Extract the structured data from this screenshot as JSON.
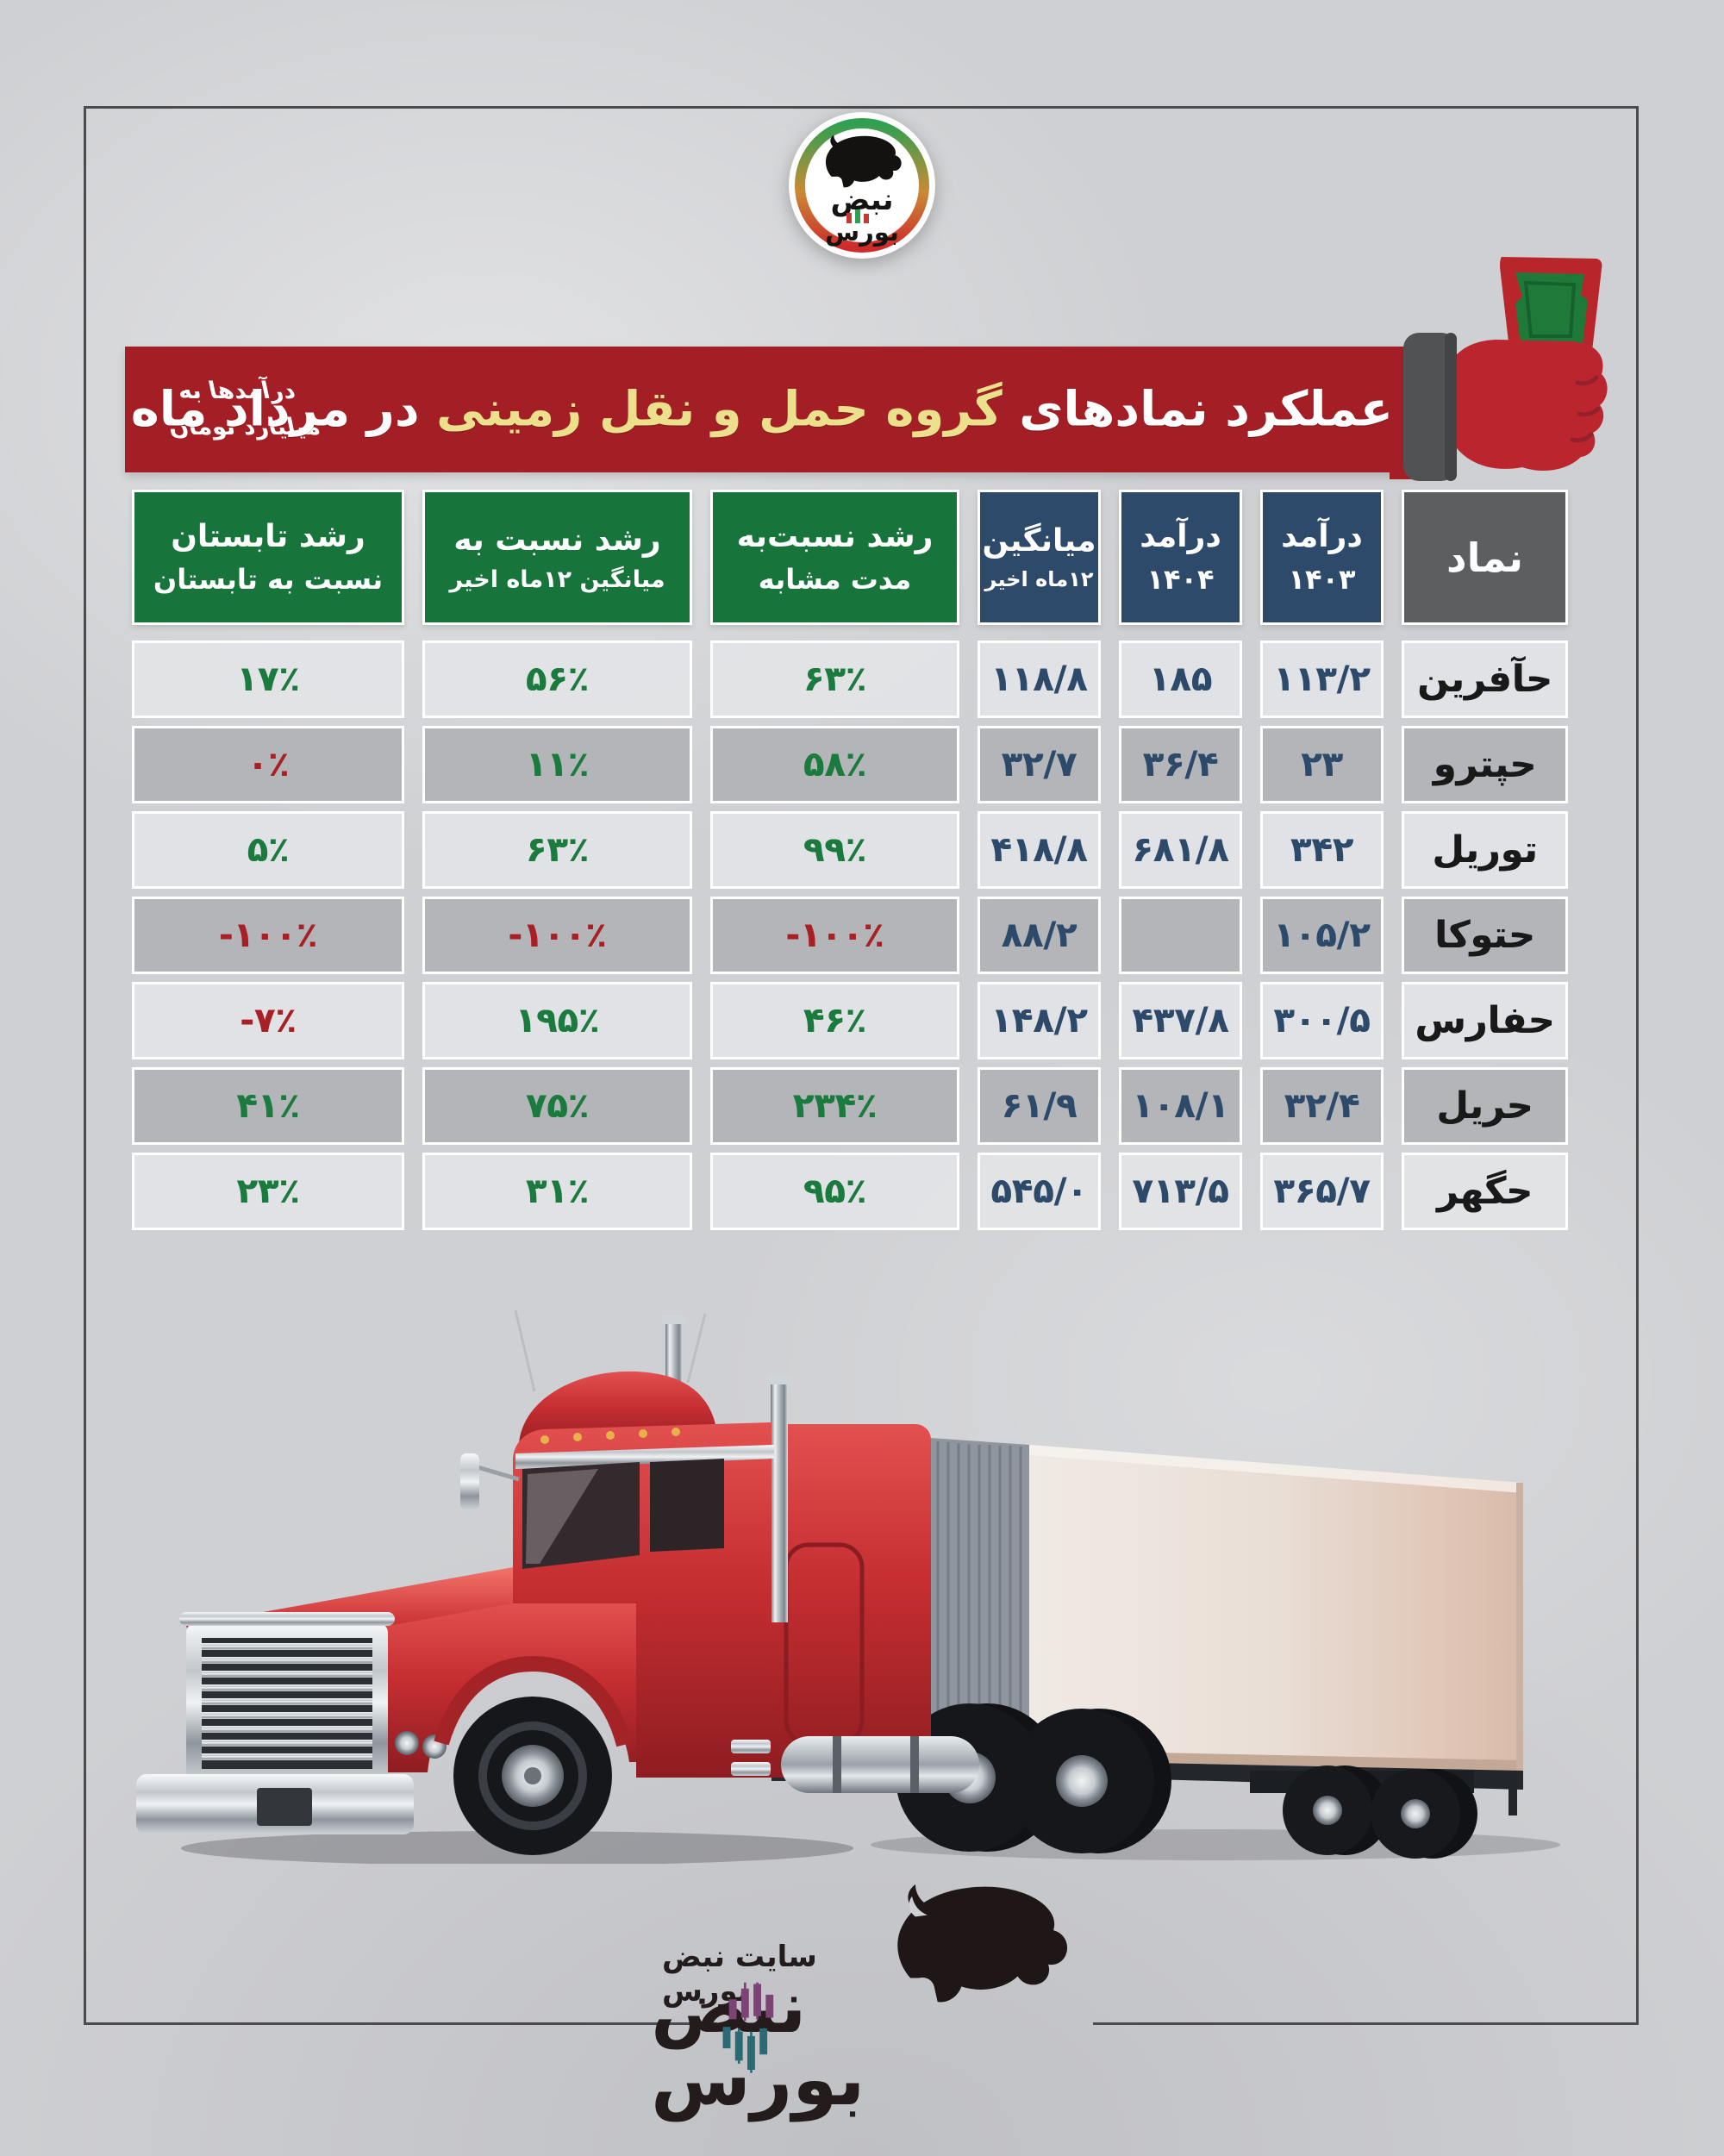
{
  "background": {
    "color": "#cfd0d3",
    "frame_color": "#4b4b4d"
  },
  "badge": {
    "brand_line1": "نبض",
    "brand_line2": "بورس"
  },
  "banner": {
    "title_pre": "عملکرد نمادهای",
    "title_highlight": "گروه حمل و نقل زمینی",
    "title_post": "در مرداد ماه",
    "unit_line1": "درآمدها به",
    "unit_line2": "میلیارد تومان",
    "bg_color": "#a31f25",
    "highlight_color": "#ece08c"
  },
  "table": {
    "columns": [
      {
        "label1": "نماد",
        "label2": ""
      },
      {
        "label1": "درآمد",
        "label2": "۱۴۰۳"
      },
      {
        "label1": "درآمد",
        "label2": "۱۴۰۴"
      },
      {
        "label1": "میانگین",
        "label2": "۱۲ماه اخیر"
      },
      {
        "label1": "رشد نسبت‌به",
        "label2": "مدت مشابه"
      },
      {
        "label1": "رشد نسبت به",
        "label2": "میانگین ۱۲ماه اخیر"
      },
      {
        "label1": "رشد تابستان",
        "label2": "نسبت به تابستان"
      }
    ],
    "header_colors": {
      "symbol": "#5d5e60",
      "revenue": "#2d4a6a",
      "growth": "#17753c"
    },
    "value_colors": {
      "navy": "#2d4a6a",
      "green": "#1b7a3e",
      "red": "#a81f24",
      "symbol": "#191919"
    },
    "rows": [
      {
        "cells": [
          {
            "v": "حآفرین",
            "c": "symbol"
          },
          {
            "v": "۱۱۳/۲",
            "c": "navy"
          },
          {
            "v": "۱۸۵",
            "c": "navy"
          },
          {
            "v": "۱۱۸/۸",
            "c": "navy"
          },
          {
            "v": "۶۳٪",
            "c": "green"
          },
          {
            "v": "۵۶٪",
            "c": "green"
          },
          {
            "v": "۱۷٪",
            "c": "green"
          }
        ]
      },
      {
        "cells": [
          {
            "v": "حپترو",
            "c": "symbol"
          },
          {
            "v": "۲۳",
            "c": "navy"
          },
          {
            "v": "۳۶/۴",
            "c": "navy"
          },
          {
            "v": "۳۲/۷",
            "c": "navy"
          },
          {
            "v": "۵۸٪",
            "c": "green"
          },
          {
            "v": "۱۱٪",
            "c": "green"
          },
          {
            "v": "۰٪",
            "c": "red"
          }
        ]
      },
      {
        "cells": [
          {
            "v": "توریل",
            "c": "symbol"
          },
          {
            "v": "۳۴۲",
            "c": "navy"
          },
          {
            "v": "۶۸۱/۸",
            "c": "navy"
          },
          {
            "v": "۴۱۸/۸",
            "c": "navy"
          },
          {
            "v": "۹۹٪",
            "c": "green"
          },
          {
            "v": "۶۳٪",
            "c": "green"
          },
          {
            "v": "۵٪",
            "c": "green"
          }
        ]
      },
      {
        "cells": [
          {
            "v": "حتوکا",
            "c": "symbol"
          },
          {
            "v": "۱۰۵/۲",
            "c": "navy"
          },
          {
            "v": "",
            "c": "navy"
          },
          {
            "v": "۸۸/۲",
            "c": "navy"
          },
          {
            "v": "-۱۰۰٪",
            "c": "red"
          },
          {
            "v": "-۱۰۰٪",
            "c": "red"
          },
          {
            "v": "-۱۰۰٪",
            "c": "red"
          }
        ]
      },
      {
        "cells": [
          {
            "v": "حفارس",
            "c": "symbol"
          },
          {
            "v": "۳۰۰/۵",
            "c": "navy"
          },
          {
            "v": "۴۳۷/۸",
            "c": "navy"
          },
          {
            "v": "۱۴۸/۲",
            "c": "navy"
          },
          {
            "v": "۴۶٪",
            "c": "green"
          },
          {
            "v": "۱۹۵٪",
            "c": "green"
          },
          {
            "v": "-۷٪",
            "c": "red"
          }
        ]
      },
      {
        "cells": [
          {
            "v": "حریل",
            "c": "symbol"
          },
          {
            "v": "۳۲/۴",
            "c": "navy"
          },
          {
            "v": "۱۰۸/۱",
            "c": "navy"
          },
          {
            "v": "۶۱/۹",
            "c": "navy"
          },
          {
            "v": "۲۳۴٪",
            "c": "green"
          },
          {
            "v": "۷۵٪",
            "c": "green"
          },
          {
            "v": "۴۱٪",
            "c": "green"
          }
        ]
      },
      {
        "cells": [
          {
            "v": "حگهر",
            "c": "symbol"
          },
          {
            "v": "۳۶۵/۷",
            "c": "navy"
          },
          {
            "v": "۷۱۳/۵",
            "c": "navy"
          },
          {
            "v": "۵۴۵/۰",
            "c": "navy"
          },
          {
            "v": "۹۵٪",
            "c": "green"
          },
          {
            "v": "۳۱٪",
            "c": "green"
          },
          {
            "v": "۲۳٪",
            "c": "green"
          }
        ]
      }
    ]
  },
  "footer": {
    "site_line": "سایت نبض بورس",
    "brand": "نبض بورس"
  },
  "chart_data": {
    "type": "table",
    "title": "عملکرد نمادهای گروه حمل و نقل زمینی در مرداد ماه",
    "unit_note": "درآمدها به میلیارد تومان",
    "columns": [
      "نماد",
      "درآمد ۱۴۰۳",
      "درآمد ۱۴۰۴",
      "میانگین ۱۲ماه اخیر",
      "رشد نسبت‌به مدت مشابه",
      "رشد نسبت به میانگین ۱۲ماه اخیر",
      "رشد تابستان نسبت به تابستان"
    ],
    "rows": [
      [
        "حآفرین",
        "۱۱۳/۲",
        "۱۸۵",
        "۱۱۸/۸",
        "۶۳٪",
        "۵۶٪",
        "۱۷٪"
      ],
      [
        "حپترو",
        "۲۳",
        "۳۶/۴",
        "۳۲/۷",
        "۵۸٪",
        "۱۱٪",
        "۰٪"
      ],
      [
        "توریل",
        "۳۴۲",
        "۶۸۱/۸",
        "۴۱۸/۸",
        "۹۹٪",
        "۶۳٪",
        "۵٪"
      ],
      [
        "حتوکا",
        "۱۰۵/۲",
        "",
        "۸۸/۲",
        "-۱۰۰٪",
        "-۱۰۰٪",
        "-۱۰۰٪"
      ],
      [
        "حفارس",
        "۳۰۰/۵",
        "۴۳۷/۸",
        "۱۴۸/۲",
        "۴۶٪",
        "۱۹۵٪",
        "-۷٪"
      ],
      [
        "حریل",
        "۳۲/۴",
        "۱۰۸/۱",
        "۶۱/۹",
        "۲۳۴٪",
        "۷۵٪",
        "۴۱٪"
      ],
      [
        "حگهر",
        "۳۶۵/۷",
        "۷۱۳/۵",
        "۵۴۵/۰",
        "۹۵٪",
        "۳۱٪",
        "۲۳٪"
      ]
    ],
    "rows_numeric": [
      {
        "symbol": "حآفرین",
        "rev_1403": 113.2,
        "rev_1404": 185,
        "avg_12mo": 118.8,
        "growth_vs_similar_pct": 63,
        "growth_vs_12mo_avg_pct": 56,
        "summer_vs_summer_pct": 17
      },
      {
        "symbol": "حپترو",
        "rev_1403": 23,
        "rev_1404": 36.4,
        "avg_12mo": 32.7,
        "growth_vs_similar_pct": 58,
        "growth_vs_12mo_avg_pct": 11,
        "summer_vs_summer_pct": 0
      },
      {
        "symbol": "توریل",
        "rev_1403": 342,
        "rev_1404": 681.8,
        "avg_12mo": 418.8,
        "growth_vs_similar_pct": 99,
        "growth_vs_12mo_avg_pct": 63,
        "summer_vs_summer_pct": 5
      },
      {
        "symbol": "حتوکا",
        "rev_1403": 105.2,
        "rev_1404": null,
        "avg_12mo": 88.2,
        "growth_vs_similar_pct": -100,
        "growth_vs_12mo_avg_pct": -100,
        "summer_vs_summer_pct": -100
      },
      {
        "symbol": "حفارس",
        "rev_1403": 300.5,
        "rev_1404": 437.8,
        "avg_12mo": 148.2,
        "growth_vs_similar_pct": 46,
        "growth_vs_12mo_avg_pct": 195,
        "summer_vs_summer_pct": -7
      },
      {
        "symbol": "حریل",
        "rev_1403": 32.4,
        "rev_1404": 108.1,
        "avg_12mo": 61.9,
        "growth_vs_similar_pct": 234,
        "growth_vs_12mo_avg_pct": 75,
        "summer_vs_summer_pct": 41
      },
      {
        "symbol": "حگهر",
        "rev_1403": 365.7,
        "rev_1404": 713.5,
        "avg_12mo": 545.0,
        "growth_vs_similar_pct": 95,
        "growth_vs_12mo_avg_pct": 31,
        "summer_vs_summer_pct": 23
      }
    ]
  }
}
